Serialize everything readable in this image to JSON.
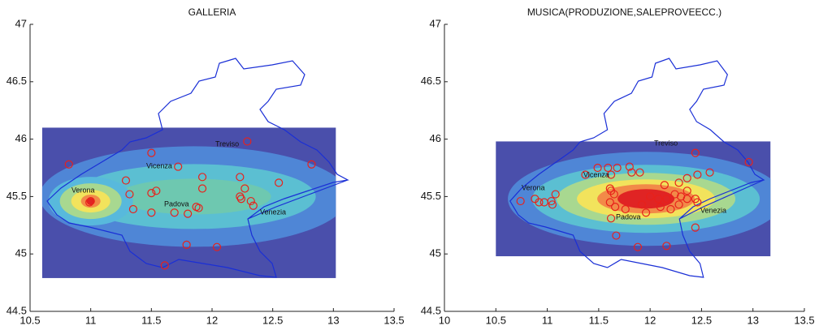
{
  "chart_data": [
    {
      "type": "scatter",
      "title": "GALLERIA",
      "xlim": [
        10.5,
        13.5
      ],
      "xticks": [
        10.5,
        11,
        11.5,
        12,
        12.5,
        13,
        13.5
      ],
      "ylim": [
        44.5,
        47
      ],
      "yticks": [
        44.5,
        45,
        45.5,
        46,
        46.5,
        47
      ],
      "color": "#e8211b",
      "annotations": [
        "Verona",
        "Vicenza",
        "Padova",
        "Venezia",
        "Treviso"
      ],
      "heatmap": {
        "xlim": [
          10.6,
          13.02
        ],
        "ylim": [
          44.79,
          46.1
        ],
        "peaks": [
          {
            "x": 11.0,
            "y": 45.46
          },
          {
            "x": 11.85,
            "y": 45.5
          }
        ]
      },
      "x": [
        10.82,
        11.5,
        11.29,
        11.32,
        11.5,
        11.54,
        11.35,
        11.5,
        11.72,
        11.92,
        11.92,
        11.69,
        11.87,
        11.89,
        11.8,
        12.23,
        12.27,
        12.23,
        12.24,
        12.32,
        12.34,
        12.29,
        12.55,
        12.82,
        11.79,
        12.04,
        11.61,
        10.99,
        11.0
      ],
      "values": [
        45.78,
        45.88,
        45.64,
        45.52,
        45.53,
        45.55,
        45.39,
        45.36,
        45.76,
        45.67,
        45.57,
        45.36,
        45.41,
        45.4,
        45.35,
        45.67,
        45.57,
        45.5,
        45.48,
        45.46,
        45.42,
        45.98,
        45.62,
        45.78,
        45.08,
        45.06,
        44.9,
        45.45,
        45.46
      ]
    },
    {
      "type": "scatter",
      "title": "MUSICA(PRODUZIONE,SALEPROVEECC.)",
      "xlim": [
        10,
        13.5
      ],
      "xticks": [
        10,
        10.5,
        11,
        11.5,
        12,
        12.5,
        13,
        13.5
      ],
      "ylim": [
        44.5,
        47
      ],
      "yticks": [
        44.5,
        45,
        45.5,
        46,
        46.5,
        47
      ],
      "color": "#e8211b",
      "annotations": [
        "Verona",
        "Vicenza",
        "Padova",
        "Venezia",
        "Treviso"
      ],
      "heatmap": {
        "xlim": [
          10.5,
          13.17
        ],
        "ylim": [
          44.98,
          45.98
        ],
        "peaks": [
          {
            "x": 11.96,
            "y": 45.48
          }
        ]
      },
      "x": [
        10.74,
        10.88,
        10.92,
        10.97,
        11.04,
        11.05,
        11.08,
        11.37,
        11.49,
        11.59,
        11.62,
        11.68,
        11.8,
        11.82,
        11.9,
        11.61,
        11.62,
        11.65,
        11.61,
        11.66,
        12.0,
        12.08,
        12.16,
        12.24,
        12.3,
        12.36,
        12.14,
        12.28,
        12.36,
        12.46,
        12.36,
        12.44,
        12.46,
        12.1,
        12.2,
        12.28,
        12.44,
        12.44,
        12.58,
        11.92,
        11.96,
        11.76,
        11.62,
        11.67,
        11.88,
        12.16,
        12.96
      ],
      "values": [
        45.46,
        45.48,
        45.45,
        45.45,
        45.46,
        45.43,
        45.52,
        45.69,
        45.75,
        45.75,
        45.69,
        45.75,
        45.76,
        45.71,
        45.71,
        45.57,
        45.55,
        45.52,
        45.45,
        45.41,
        45.5,
        45.48,
        45.48,
        45.52,
        45.5,
        45.48,
        45.6,
        45.62,
        45.66,
        45.69,
        45.55,
        45.48,
        45.45,
        45.41,
        45.39,
        45.43,
        45.23,
        45.88,
        45.71,
        45.43,
        45.36,
        45.39,
        45.31,
        45.16,
        45.06,
        45.07,
        45.8
      ]
    }
  ]
}
